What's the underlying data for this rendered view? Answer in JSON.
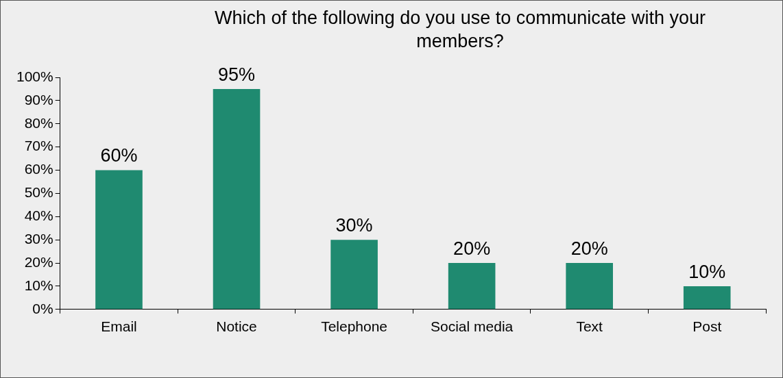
{
  "chart_data": {
    "type": "bar",
    "title": "Which of the following do you use to communicate with your members?",
    "categories": [
      "Email",
      "Notice",
      "Telephone",
      "Social media",
      "Text",
      "Post"
    ],
    "values": [
      60,
      95,
      30,
      20,
      20,
      10
    ],
    "value_labels": [
      "60%",
      "95%",
      "30%",
      "20%",
      "20%",
      "10%"
    ],
    "color": "#1f8a70",
    "ylim": [
      0,
      100
    ],
    "yticks": [
      {
        "value": 0,
        "label": "0%"
      },
      {
        "value": 10,
        "label": "10%"
      },
      {
        "value": 20,
        "label": "20%"
      },
      {
        "value": 30,
        "label": "30%"
      },
      {
        "value": 40,
        "label": "40%"
      },
      {
        "value": 50,
        "label": "50%"
      },
      {
        "value": 60,
        "label": "60%"
      },
      {
        "value": 70,
        "label": "70%"
      },
      {
        "value": 80,
        "label": "80%"
      },
      {
        "value": 90,
        "label": "90%"
      },
      {
        "value": 100,
        "label": "100%"
      }
    ],
    "grid": false,
    "legend": false
  }
}
